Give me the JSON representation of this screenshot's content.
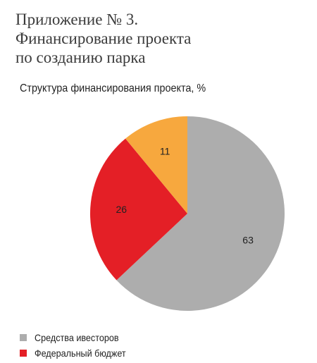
{
  "header": {
    "title_lines": [
      "Приложение № 3.",
      "Финансирование проекта",
      "по созданию парка"
    ]
  },
  "chart_data": {
    "type": "pie",
    "title": "Структура финансирования проекта, %",
    "slices": [
      {
        "label": "Средства ивесторов",
        "value": 63,
        "color": "#adadad"
      },
      {
        "label": "Федеральный бюджет",
        "value": 26,
        "color": "#e41f26"
      },
      {
        "label": "",
        "value": 11,
        "color": "#f7a83e"
      }
    ],
    "start_angle_deg": 0,
    "direction": "clockwise",
    "legend_position": "bottom-left"
  }
}
